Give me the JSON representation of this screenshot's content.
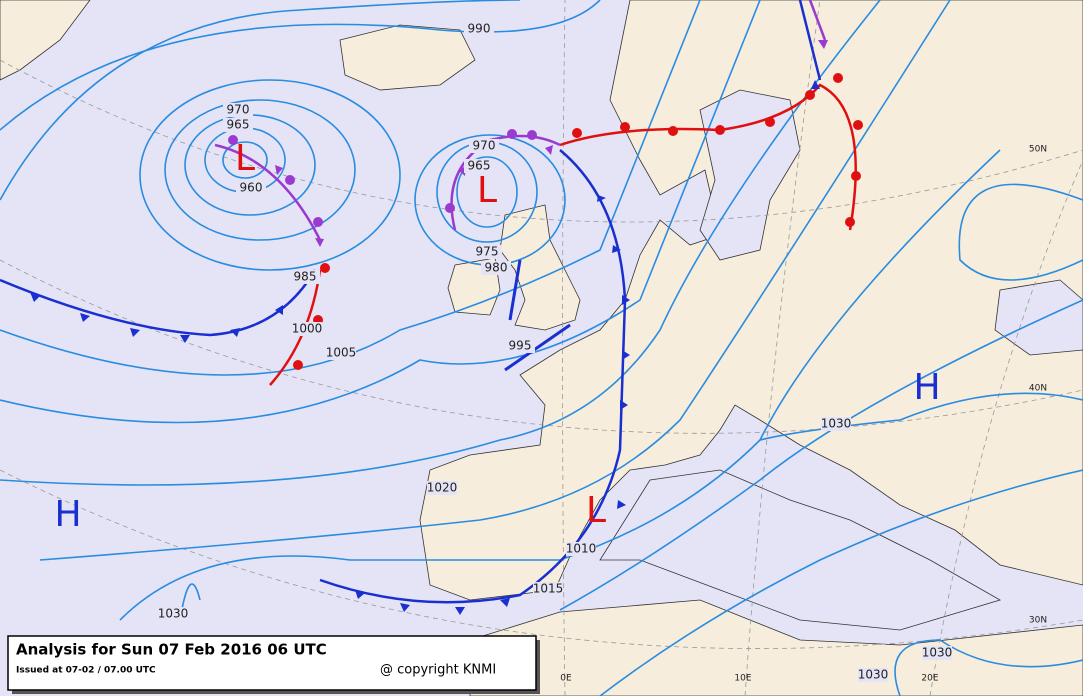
{
  "title": "Analysis for Sun 07 Feb 2016 06 UTC",
  "issued": "Issued at 07-02 / 07.00 UTC",
  "copyright": "@ copyright KNMI",
  "pressure_systems": [
    "L",
    "L",
    "L",
    "H",
    "H"
  ],
  "isobar_labels": [
    "990",
    "970",
    "965",
    "960",
    "985",
    "1000",
    "1005",
    "970",
    "965",
    "975",
    "980",
    "995",
    "1020",
    "1010",
    "1015",
    "1030",
    "1030",
    "1030",
    "1030"
  ],
  "grid_labels": [
    "50N",
    "40N",
    "30N",
    "0E",
    "10E",
    "20E"
  ]
}
